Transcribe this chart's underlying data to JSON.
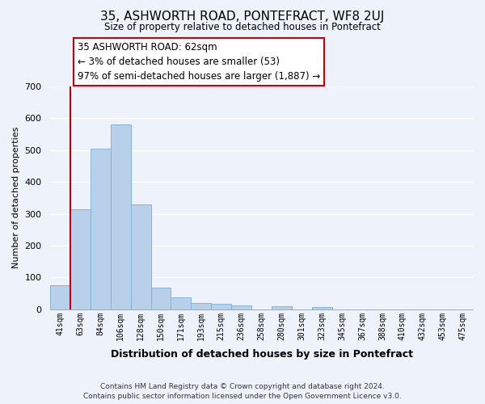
{
  "title": "35, ASHWORTH ROAD, PONTEFRACT, WF8 2UJ",
  "subtitle": "Size of property relative to detached houses in Pontefract",
  "xlabel": "Distribution of detached houses by size in Pontefract",
  "ylabel": "Number of detached properties",
  "bar_labels": [
    "41sqm",
    "63sqm",
    "84sqm",
    "106sqm",
    "128sqm",
    "150sqm",
    "171sqm",
    "193sqm",
    "215sqm",
    "236sqm",
    "258sqm",
    "280sqm",
    "301sqm",
    "323sqm",
    "345sqm",
    "367sqm",
    "388sqm",
    "410sqm",
    "432sqm",
    "453sqm",
    "475sqm"
  ],
  "bar_values": [
    75,
    315,
    505,
    580,
    330,
    68,
    38,
    20,
    17,
    12,
    0,
    11,
    0,
    8,
    0,
    0,
    0,
    0,
    0,
    0,
    0
  ],
  "bar_color": "#b8d0ea",
  "bar_edge_color": "#7aaed6",
  "vline_color": "#cc0000",
  "vline_x": 0.5,
  "ylim": [
    0,
    700
  ],
  "yticks": [
    0,
    100,
    200,
    300,
    400,
    500,
    600,
    700
  ],
  "annotation_title": "35 ASHWORTH ROAD: 62sqm",
  "annotation_line1": "← 3% of detached houses are smaller (53)",
  "annotation_line2": "97% of semi-detached houses are larger (1,887) →",
  "footer1": "Contains HM Land Registry data © Crown copyright and database right 2024.",
  "footer2": "Contains public sector information licensed under the Open Government Licence v3.0.",
  "bg_color": "#eef2fa",
  "grid_color": "#ffffff"
}
